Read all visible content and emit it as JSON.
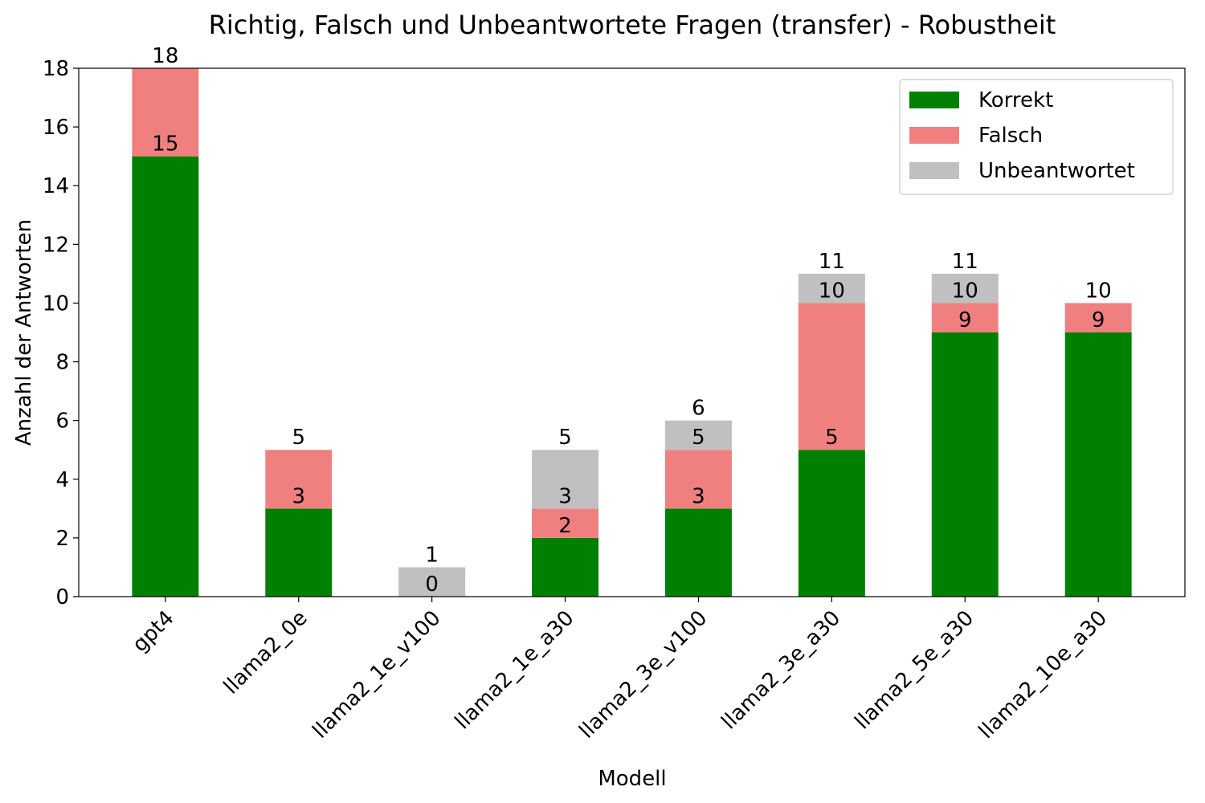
{
  "chart_data": {
    "type": "bar",
    "stacked": true,
    "title": "Richtig, Falsch und Unbeantwortete Fragen (transfer) - Robustheit",
    "xlabel": "Modell",
    "ylabel": "Anzahl der Antworten",
    "ylim": [
      0,
      18
    ],
    "yticks": [
      0,
      2,
      4,
      6,
      8,
      10,
      12,
      14,
      16,
      18
    ],
    "grid": false,
    "legend_position": "top-right",
    "categories": [
      "gpt4",
      "llama2_0e",
      "llama2_1e_v100",
      "llama2_1e_a30",
      "llama2_3e_v100",
      "llama2_3e_a30",
      "llama2_5e_a30",
      "llama2_10e_a30"
    ],
    "series": [
      {
        "name": "Korrekt",
        "color": "#008000",
        "values": [
          15,
          3,
          0,
          2,
          3,
          5,
          9,
          9
        ]
      },
      {
        "name": "Falsch",
        "color": "#f08080",
        "values": [
          3,
          2,
          0,
          1,
          2,
          5,
          1,
          1
        ]
      },
      {
        "name": "Unbeantwortet",
        "color": "#c0c0c0",
        "values": [
          0,
          0,
          1,
          2,
          1,
          1,
          1,
          0
        ]
      }
    ],
    "totals": [
      18,
      5,
      1,
      5,
      6,
      11,
      11,
      10
    ],
    "segment_labels": [
      [
        15
      ],
      [
        3
      ],
      [
        0
      ],
      [
        2,
        3
      ],
      [
        3,
        5
      ],
      [
        5,
        10
      ],
      [
        9,
        10
      ],
      [
        9
      ]
    ]
  }
}
